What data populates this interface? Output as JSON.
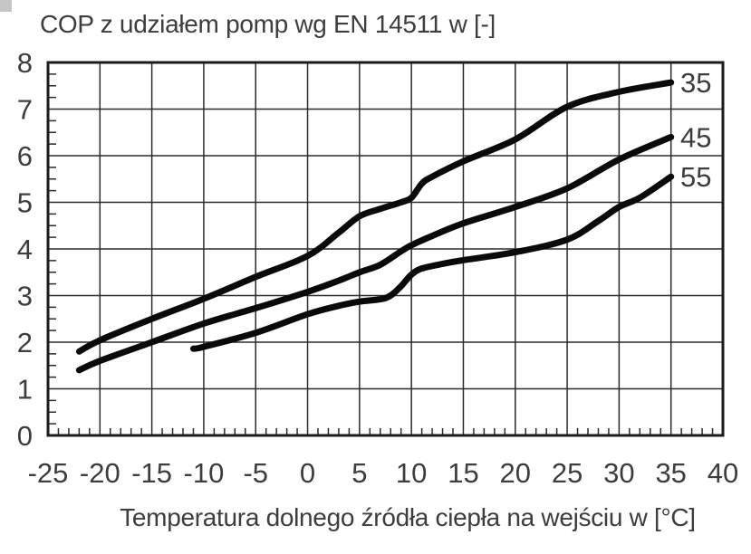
{
  "title": "COP z udziałem pomp wg EN 14511 w [-]",
  "chart_data": {
    "type": "line",
    "title": "COP z udziałem pomp wg EN 14511 w [-]",
    "xlabel": "Temperatura dolnego źródła ciepła na wejściu w [°C]",
    "ylabel": "",
    "xlim": [
      -25,
      40
    ],
    "ylim": [
      0,
      8
    ],
    "x_major_step": 5,
    "y_major_step": 1,
    "x_minor_step": 1,
    "y_minor_step": 0.25,
    "grid": true,
    "legend_position": "right-inside-end-of-curves",
    "x_tick_values": [
      -25,
      -20,
      -15,
      -10,
      -5,
      0,
      5,
      10,
      15,
      20,
      25,
      30,
      35,
      40
    ],
    "x_ticks": [
      "-25",
      "-20",
      "-15",
      "-10",
      "-5",
      "0",
      "5",
      "10",
      "15",
      "20",
      "25",
      "30",
      "35",
      "40"
    ],
    "y_tick_values": [
      0,
      1,
      2,
      3,
      4,
      5,
      6,
      7,
      8
    ],
    "y_ticks": [
      "0",
      "1",
      "2",
      "3",
      "4",
      "5",
      "6",
      "7",
      "8"
    ],
    "series": [
      {
        "name": "35",
        "points": [
          [
            -22,
            1.8
          ],
          [
            -20,
            2.04
          ],
          [
            -15,
            2.5
          ],
          [
            -10,
            2.93
          ],
          [
            -5,
            3.4
          ],
          [
            0,
            3.85
          ],
          [
            3,
            4.35
          ],
          [
            5,
            4.7
          ],
          [
            7,
            4.86
          ],
          [
            9,
            5.0
          ],
          [
            10,
            5.1
          ],
          [
            11,
            5.4
          ],
          [
            12,
            5.55
          ],
          [
            15,
            5.88
          ],
          [
            20,
            6.35
          ],
          [
            25,
            7.05
          ],
          [
            30,
            7.37
          ],
          [
            35,
            7.57
          ]
        ]
      },
      {
        "name": "45",
        "points": [
          [
            -22,
            1.4
          ],
          [
            -20,
            1.6
          ],
          [
            -15,
            2.0
          ],
          [
            -10,
            2.4
          ],
          [
            -5,
            2.73
          ],
          [
            0,
            3.08
          ],
          [
            3,
            3.32
          ],
          [
            5,
            3.5
          ],
          [
            7,
            3.66
          ],
          [
            9,
            3.95
          ],
          [
            10,
            4.08
          ],
          [
            12,
            4.28
          ],
          [
            15,
            4.55
          ],
          [
            20,
            4.9
          ],
          [
            25,
            5.3
          ],
          [
            30,
            5.92
          ],
          [
            35,
            6.4
          ]
        ]
      },
      {
        "name": "55",
        "points": [
          [
            -11,
            1.86
          ],
          [
            -10,
            1.9
          ],
          [
            -5,
            2.2
          ],
          [
            0,
            2.6
          ],
          [
            3,
            2.78
          ],
          [
            5,
            2.87
          ],
          [
            7,
            2.92
          ],
          [
            8,
            3.0
          ],
          [
            9,
            3.2
          ],
          [
            10,
            3.45
          ],
          [
            11,
            3.58
          ],
          [
            13,
            3.68
          ],
          [
            15,
            3.76
          ],
          [
            20,
            3.93
          ],
          [
            25,
            4.2
          ],
          [
            28,
            4.6
          ],
          [
            30,
            4.9
          ],
          [
            32,
            5.1
          ],
          [
            35,
            5.55
          ]
        ]
      }
    ],
    "colors": {
      "curve": "#0a0a0a",
      "grid": "#2b2b2b",
      "text": "#3d3d3d"
    }
  }
}
